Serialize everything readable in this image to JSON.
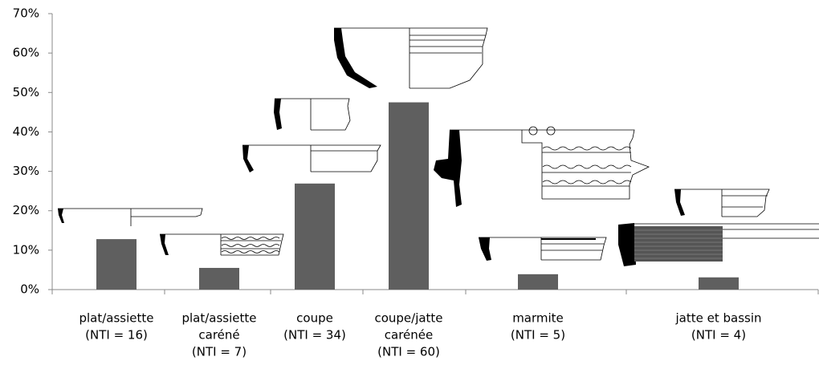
{
  "chart_data": {
    "type": "bar",
    "categories": [
      [
        "plat/assiette",
        "(NTI = 16)"
      ],
      [
        "plat/assiette",
        "caréné",
        "(NTI = 7)"
      ],
      [
        "coupe",
        "(NTI = 34)"
      ],
      [
        "coupe/jatte",
        "carénée",
        "(NTI = 60)"
      ],
      [
        "marmite",
        "(NTI = 5)"
      ],
      [
        "jatte et bassin",
        "(NTI = 4)"
      ]
    ],
    "values": [
      12.8,
      5.5,
      26.9,
      47.5,
      3.9,
      3.1
    ],
    "color": "#5f5f5f",
    "ylim": [
      0,
      70
    ],
    "yticks": [
      {
        "value": 0,
        "label": "0%"
      },
      {
        "value": 10,
        "label": "10%"
      },
      {
        "value": 20,
        "label": "20%"
      },
      {
        "value": 30,
        "label": "30%"
      },
      {
        "value": 40,
        "label": "40%"
      },
      {
        "value": 50,
        "label": "50%"
      },
      {
        "value": 60,
        "label": "60%"
      },
      {
        "value": 70,
        "label": "70%"
      }
    ]
  }
}
